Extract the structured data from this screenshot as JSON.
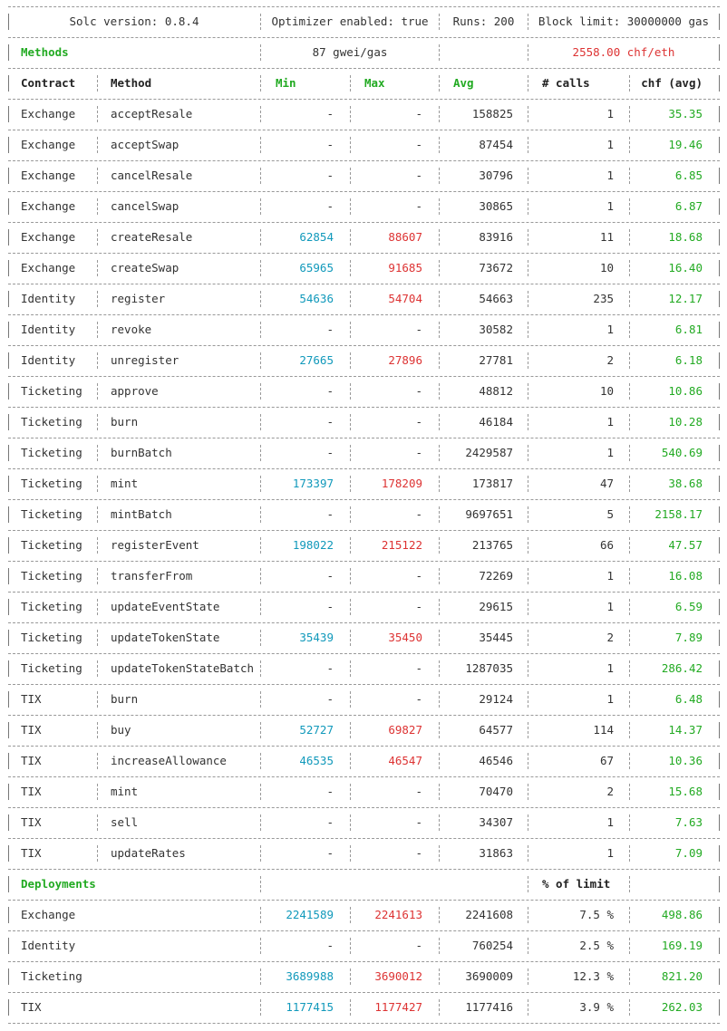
{
  "header": {
    "solc_version": "Solc version: 0.8.4",
    "optimizer": "Optimizer enabled: true",
    "runs": "Runs: 200",
    "block_limit": "Block limit: 30000000 gas"
  },
  "methods_section": {
    "label": "Methods",
    "gas_price": "87 gwei/gas",
    "eth_price": "2558.00 chf/eth"
  },
  "columns": {
    "contract": "Contract",
    "method": "Method",
    "min": "Min",
    "max": "Max",
    "avg": "Avg",
    "calls": "# calls",
    "cost": "chf (avg)"
  },
  "methods": [
    {
      "contract": "Exchange",
      "method": "acceptResale",
      "min": "-",
      "max": "-",
      "avg": "158825",
      "calls": "1",
      "cost": "35.35"
    },
    {
      "contract": "Exchange",
      "method": "acceptSwap",
      "min": "-",
      "max": "-",
      "avg": "87454",
      "calls": "1",
      "cost": "19.46"
    },
    {
      "contract": "Exchange",
      "method": "cancelResale",
      "min": "-",
      "max": "-",
      "avg": "30796",
      "calls": "1",
      "cost": "6.85"
    },
    {
      "contract": "Exchange",
      "method": "cancelSwap",
      "min": "-",
      "max": "-",
      "avg": "30865",
      "calls": "1",
      "cost": "6.87"
    },
    {
      "contract": "Exchange",
      "method": "createResale",
      "min": "62854",
      "max": "88607",
      "avg": "83916",
      "calls": "11",
      "cost": "18.68"
    },
    {
      "contract": "Exchange",
      "method": "createSwap",
      "min": "65965",
      "max": "91685",
      "avg": "73672",
      "calls": "10",
      "cost": "16.40"
    },
    {
      "contract": "Identity",
      "method": "register",
      "min": "54636",
      "max": "54704",
      "avg": "54663",
      "calls": "235",
      "cost": "12.17"
    },
    {
      "contract": "Identity",
      "method": "revoke",
      "min": "-",
      "max": "-",
      "avg": "30582",
      "calls": "1",
      "cost": "6.81"
    },
    {
      "contract": "Identity",
      "method": "unregister",
      "min": "27665",
      "max": "27896",
      "avg": "27781",
      "calls": "2",
      "cost": "6.18"
    },
    {
      "contract": "Ticketing",
      "method": "approve",
      "min": "-",
      "max": "-",
      "avg": "48812",
      "calls": "10",
      "cost": "10.86"
    },
    {
      "contract": "Ticketing",
      "method": "burn",
      "min": "-",
      "max": "-",
      "avg": "46184",
      "calls": "1",
      "cost": "10.28"
    },
    {
      "contract": "Ticketing",
      "method": "burnBatch",
      "min": "-",
      "max": "-",
      "avg": "2429587",
      "calls": "1",
      "cost": "540.69"
    },
    {
      "contract": "Ticketing",
      "method": "mint",
      "min": "173397",
      "max": "178209",
      "avg": "173817",
      "calls": "47",
      "cost": "38.68"
    },
    {
      "contract": "Ticketing",
      "method": "mintBatch",
      "min": "-",
      "max": "-",
      "avg": "9697651",
      "calls": "5",
      "cost": "2158.17"
    },
    {
      "contract": "Ticketing",
      "method": "registerEvent",
      "min": "198022",
      "max": "215122",
      "avg": "213765",
      "calls": "66",
      "cost": "47.57"
    },
    {
      "contract": "Ticketing",
      "method": "transferFrom",
      "min": "-",
      "max": "-",
      "avg": "72269",
      "calls": "1",
      "cost": "16.08"
    },
    {
      "contract": "Ticketing",
      "method": "updateEventState",
      "min": "-",
      "max": "-",
      "avg": "29615",
      "calls": "1",
      "cost": "6.59"
    },
    {
      "contract": "Ticketing",
      "method": "updateTokenState",
      "min": "35439",
      "max": "35450",
      "avg": "35445",
      "calls": "2",
      "cost": "7.89"
    },
    {
      "contract": "Ticketing",
      "method": "updateTokenStateBatch",
      "min": "-",
      "max": "-",
      "avg": "1287035",
      "calls": "1",
      "cost": "286.42"
    },
    {
      "contract": "TIX",
      "method": "burn",
      "min": "-",
      "max": "-",
      "avg": "29124",
      "calls": "1",
      "cost": "6.48"
    },
    {
      "contract": "TIX",
      "method": "buy",
      "min": "52727",
      "max": "69827",
      "avg": "64577",
      "calls": "114",
      "cost": "14.37"
    },
    {
      "contract": "TIX",
      "method": "increaseAllowance",
      "min": "46535",
      "max": "46547",
      "avg": "46546",
      "calls": "67",
      "cost": "10.36"
    },
    {
      "contract": "TIX",
      "method": "mint",
      "min": "-",
      "max": "-",
      "avg": "70470",
      "calls": "2",
      "cost": "15.68"
    },
    {
      "contract": "TIX",
      "method": "sell",
      "min": "-",
      "max": "-",
      "avg": "34307",
      "calls": "1",
      "cost": "7.63"
    },
    {
      "contract": "TIX",
      "method": "updateRates",
      "min": "-",
      "max": "-",
      "avg": "31863",
      "calls": "1",
      "cost": "7.09"
    }
  ],
  "deployments_section": {
    "label": "Deployments",
    "limit_header": "% of limit"
  },
  "deployments": [
    {
      "contract": "Exchange",
      "min": "2241589",
      "max": "2241613",
      "avg": "2241608",
      "limit": "7.5 %",
      "cost": "498.86"
    },
    {
      "contract": "Identity",
      "min": "-",
      "max": "-",
      "avg": "760254",
      "limit": "2.5 %",
      "cost": "169.19"
    },
    {
      "contract": "Ticketing",
      "min": "3689988",
      "max": "3690012",
      "avg": "3690009",
      "limit": "12.3 %",
      "cost": "821.20"
    },
    {
      "contract": "TIX",
      "min": "1177415",
      "max": "1177427",
      "avg": "1177416",
      "limit": "3.9 %",
      "cost": "262.03"
    }
  ],
  "colors": {
    "header_green": "#22aa22",
    "min_value": "#1199bb",
    "max_value": "#dd3333",
    "cost_value": "#22aa22",
    "rule": "#999999",
    "text": "#333333"
  }
}
